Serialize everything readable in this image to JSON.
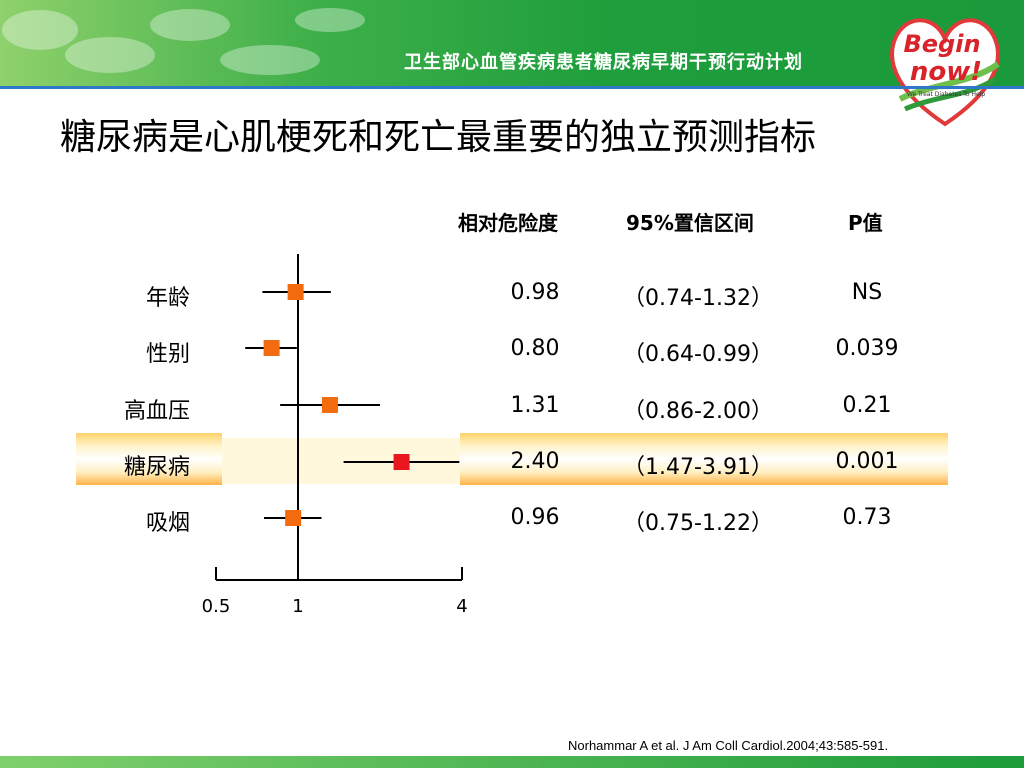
{
  "header": {
    "banner_title": "卫生部心血管疾病患者糖尿病早期干预行动计划",
    "logo_text_top": "Begin",
    "logo_text_bottom": "now!",
    "logo_tagline": "We Treat Diabetes To Help"
  },
  "page_title": "糖尿病是心肌梗死和死亡最重要的独立预测指标",
  "columns": {
    "rr": "相对危险度",
    "ci": "95%置信区间",
    "p": "P值"
  },
  "rows": [
    {
      "label": "年龄",
      "rr": "0.98",
      "ci": "（0.74-1.32）",
      "p": "NS"
    },
    {
      "label": "性别",
      "rr": "0.80",
      "ci": "（0.64-0.99）",
      "p": "0.039"
    },
    {
      "label": "高血压",
      "rr": "1.31",
      "ci": "（0.86-2.00）",
      "p": "0.21"
    },
    {
      "label": "糖尿病",
      "rr": "2.40",
      "ci": "（1.47-3.91）",
      "p": "0.001"
    },
    {
      "label": "吸烟",
      "rr": "0.96",
      "ci": "（0.75-1.22）",
      "p": "0.73"
    }
  ],
  "chart_data": {
    "type": "scatter",
    "scale": "log",
    "categories": [
      "年龄",
      "性别",
      "高血压",
      "糖尿病",
      "吸烟"
    ],
    "series": [
      {
        "values": [
          0.98,
          0.8,
          1.31,
          2.4,
          0.96
        ],
        "ci_low": [
          0.74,
          0.64,
          0.86,
          1.47,
          0.75
        ],
        "ci_high": [
          1.32,
          0.99,
          2.0,
          3.91,
          1.22
        ]
      }
    ],
    "xlim": [
      0.5,
      4
    ],
    "xticks": [
      "0.5",
      "1",
      "4"
    ],
    "reference_line": 1,
    "highlight": "糖尿病",
    "colors": {
      "marker": "#f26b0f",
      "highlight_marker": "#e8181e",
      "line": "#000000"
    }
  },
  "citation": "Norhammar A et al. J Am Coll Cardiol.2004;43:585-591."
}
